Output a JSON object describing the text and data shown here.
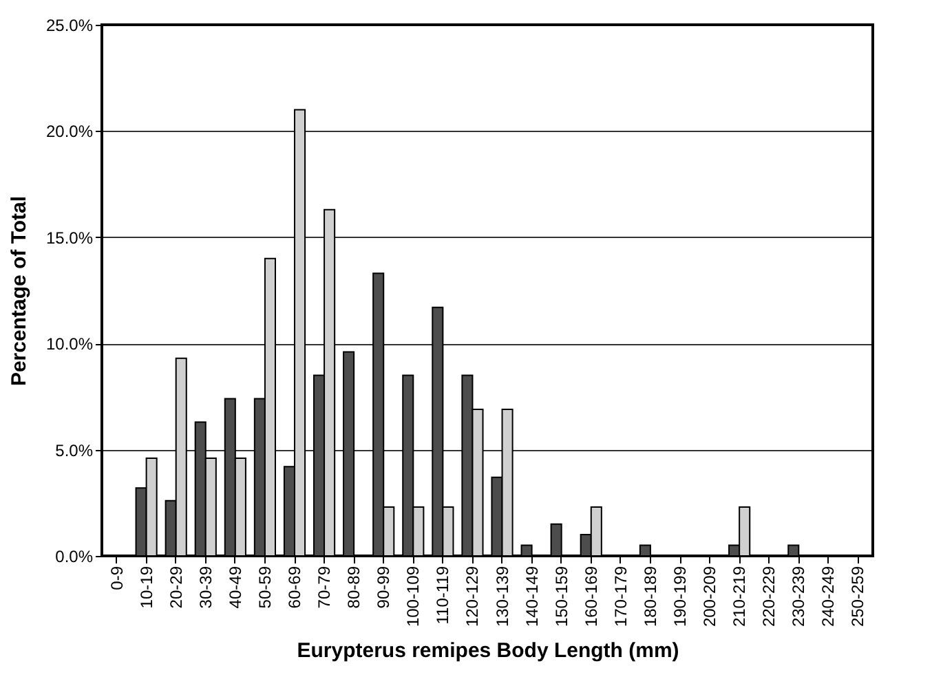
{
  "chart_data": {
    "type": "bar",
    "xlabel": "Eurypterus remipes Body Length (mm)",
    "ylabel": "Percentage of Total",
    "categories": [
      "0-9",
      "10-19",
      "20-29",
      "30-39",
      "40-49",
      "50-59",
      "60-69",
      "70-79",
      "80-89",
      "90-99",
      "100-109",
      "110-119",
      "120-129",
      "130-139",
      "140-149",
      "150-159",
      "160-169",
      "170-179",
      "180-189",
      "190-199",
      "200-209",
      "210-219",
      "220-229",
      "230-239",
      "240-249",
      "250-259"
    ],
    "series": [
      {
        "color": "#4d4d4d",
        "values": [
          0,
          3.2,
          2.6,
          6.3,
          7.4,
          7.4,
          4.2,
          8.5,
          9.6,
          13.3,
          8.5,
          11.7,
          8.5,
          3.7,
          0.5,
          1.5,
          1.0,
          0,
          0.5,
          0,
          0,
          0.5,
          0,
          0.5,
          0,
          0
        ]
      },
      {
        "color": "#d0d0d0",
        "values": [
          0,
          4.6,
          9.3,
          4.6,
          4.6,
          14.0,
          21.0,
          16.3,
          0,
          2.3,
          2.3,
          2.3,
          6.9,
          6.9,
          0,
          0,
          2.3,
          0,
          0,
          0,
          0,
          2.3,
          0,
          0,
          0,
          0
        ]
      }
    ],
    "ylim": [
      0,
      25
    ],
    "yticks": [
      {
        "value": 0,
        "label": "0.0%"
      },
      {
        "value": 5,
        "label": "5.0%"
      },
      {
        "value": 10,
        "label": "10.0%"
      },
      {
        "value": 15,
        "label": "15.0%"
      },
      {
        "value": 20,
        "label": "20.0%"
      },
      {
        "value": 25,
        "label": "25.0%"
      }
    ],
    "grid": "y"
  }
}
